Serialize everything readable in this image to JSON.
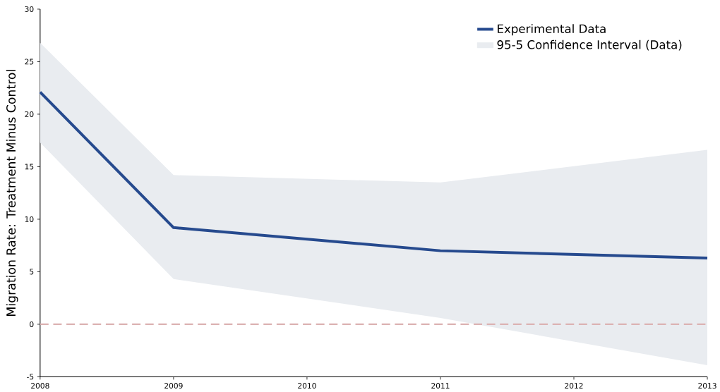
{
  "chart_data": {
    "type": "line",
    "ylabel": "Migration Rate: Treatment Minus Control",
    "x": [
      2008,
      2009,
      2011,
      2013
    ],
    "series": [
      {
        "name": "Experimental Data",
        "color": "#264a8e",
        "values": [
          22.1,
          9.2,
          7.0,
          6.3
        ]
      },
      {
        "name": "95-5 Confidence Interval (Data)",
        "type": "area",
        "color": "#e9ecf0",
        "values": [
          null,
          null,
          null,
          null
        ],
        "lower": [
          17.3,
          4.3,
          0.6,
          -3.9
        ],
        "upper": [
          26.8,
          14.2,
          13.5,
          16.6
        ]
      }
    ],
    "xlim": [
      2008,
      2013
    ],
    "xticks": [
      2008,
      2009,
      2010,
      2011,
      2012,
      2013
    ],
    "ylim": [
      -5,
      30
    ],
    "yticks": [
      -5,
      0,
      5,
      10,
      15,
      20,
      25,
      30
    ],
    "ref_lines": [
      {
        "axis": "y",
        "value": 0,
        "color": "#dcb3b3",
        "line_style": "dashed"
      }
    ],
    "grid": false,
    "legend": "top right",
    "line_style": "solid",
    "marker": "none"
  }
}
